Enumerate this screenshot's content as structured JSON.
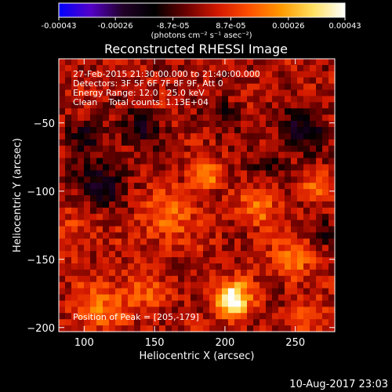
{
  "chart_data": {
    "type": "heatmap",
    "title": "Reconstructed RHESSI Image",
    "xlabel": "Heliocentric X (arcsec)",
    "ylabel": "Heliocentric Y (arcsec)",
    "xlim": [
      82,
      278
    ],
    "ylim": [
      -203,
      -3
    ],
    "x_ticks": [
      100,
      150,
      200,
      250
    ],
    "y_ticks": [
      -50,
      -100,
      -150,
      -200
    ],
    "colorbar": {
      "tick_labels": [
        "-0.00043",
        "-0.00026",
        "-8.7e-05",
        "8.7e-05",
        "0.00026",
        "0.00043"
      ],
      "tick_values": [
        -0.00043,
        -0.00026,
        -8.7e-05,
        8.7e-05,
        0.00026,
        0.00043
      ],
      "range": [
        -0.00043,
        0.00043
      ],
      "units": "(photons cm⁻² s⁻¹ asec⁻²)",
      "colormap": [
        "#0000ff",
        "#5500c8",
        "#22002a",
        "#000000",
        "#6a0000",
        "#d21800",
        "#ff5000",
        "#ff9a00",
        "#ffe060",
        "#ffffff"
      ]
    },
    "annotations": {
      "time_range": "27-Feb-2015 21:30:00.000 to 21:40:00.000",
      "detectors": "Detectors: 3F 5F 6F 7F 8F 9F, Att 0",
      "energy": "Energy Range: 12.0 - 25.0 keV",
      "method": "Clean    Total counts: 1.13E+04",
      "peak": "Position of Peak = [205,-179]"
    },
    "peak": {
      "x": 205,
      "y": -179
    },
    "sources": [
      {
        "x": 205,
        "y": -179,
        "amp": 0.00043,
        "sigma": 9
      },
      {
        "x": 187,
        "y": -88,
        "amp": 0.00022,
        "sigma": 7
      },
      {
        "x": 225,
        "y": -112,
        "amp": 0.00017,
        "sigma": 10
      },
      {
        "x": 160,
        "y": -120,
        "amp": 0.00015,
        "sigma": 14
      },
      {
        "x": 248,
        "y": -150,
        "amp": 0.00016,
        "sigma": 11
      },
      {
        "x": 110,
        "y": -185,
        "amp": 0.00018,
        "sigma": 12
      },
      {
        "x": 140,
        "y": -175,
        "amp": 0.00014,
        "sigma": 10
      },
      {
        "x": 265,
        "y": -95,
        "amp": 0.00013,
        "sigma": 8
      },
      {
        "x": 95,
        "y": -130,
        "amp": 9e-05,
        "sigma": 12
      },
      {
        "x": 260,
        "y": -195,
        "amp": 0.00012,
        "sigma": 9
      }
    ],
    "negative_regions": [
      {
        "x": 110,
        "y": -95,
        "amp": -0.0002,
        "sigma": 12
      },
      {
        "x": 140,
        "y": -55,
        "amp": -0.00016,
        "sigma": 10
      },
      {
        "x": 255,
        "y": -55,
        "amp": -0.00021,
        "sigma": 11
      },
      {
        "x": 100,
        "y": -60,
        "amp": -0.00015,
        "sigma": 9
      },
      {
        "x": 230,
        "y": -80,
        "amp": -0.00012,
        "sigma": 8
      },
      {
        "x": 200,
        "y": -45,
        "amp": -0.0001,
        "sigma": 10
      },
      {
        "x": 270,
        "y": -130,
        "amp": -0.00011,
        "sigma": 7
      }
    ]
  },
  "footer": {
    "date": "10-Aug-2017 23:03"
  }
}
